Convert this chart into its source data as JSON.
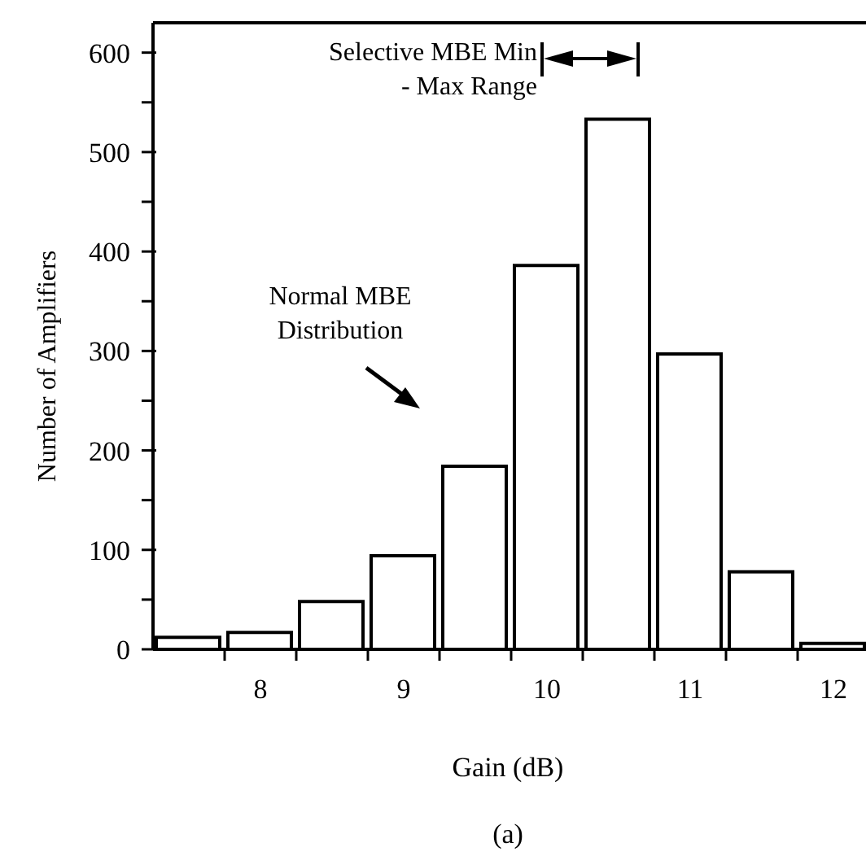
{
  "chart_data": {
    "type": "histogram",
    "xlabel": "Gain (dB)",
    "ylabel": "Number of Amplifiers",
    "bins": [
      7.25,
      7.75,
      8.25,
      8.75,
      9.25,
      9.75,
      10.25,
      10.75,
      11.25,
      11.75,
      12.25
    ],
    "values": [
      12,
      17,
      48,
      94,
      184,
      386,
      533,
      297,
      78,
      6
    ],
    "color": "#ffffff",
    "xlim": [
      7.25,
      12.25
    ],
    "xticks": [
      {
        "value": 7.75,
        "label": null
      },
      8,
      {
        "value": 8.25,
        "label": null
      },
      {
        "value": 8.75,
        "label": null
      },
      9,
      {
        "value": 9.25,
        "label": null
      },
      {
        "value": 9.75,
        "label": null
      },
      10,
      {
        "value": 10.25,
        "label": null
      },
      {
        "value": 10.75,
        "label": null
      },
      11,
      {
        "value": 11.25,
        "label": null
      },
      {
        "value": 11.75,
        "label": null
      },
      12
    ],
    "ylim": [
      0,
      630
    ],
    "yticks": [
      0,
      {
        "value": 50,
        "label": null
      },
      100,
      {
        "value": 150,
        "label": null
      },
      200,
      {
        "value": 250,
        "label": null
      },
      300,
      {
        "value": 350,
        "label": null
      },
      400,
      {
        "value": 450,
        "label": null
      },
      500,
      {
        "value": 550,
        "label": null
      },
      600
    ],
    "annotations": [
      "Selective MBE Min - Max Range",
      "Normal MBE Distribution",
      "(a)"
    ]
  }
}
